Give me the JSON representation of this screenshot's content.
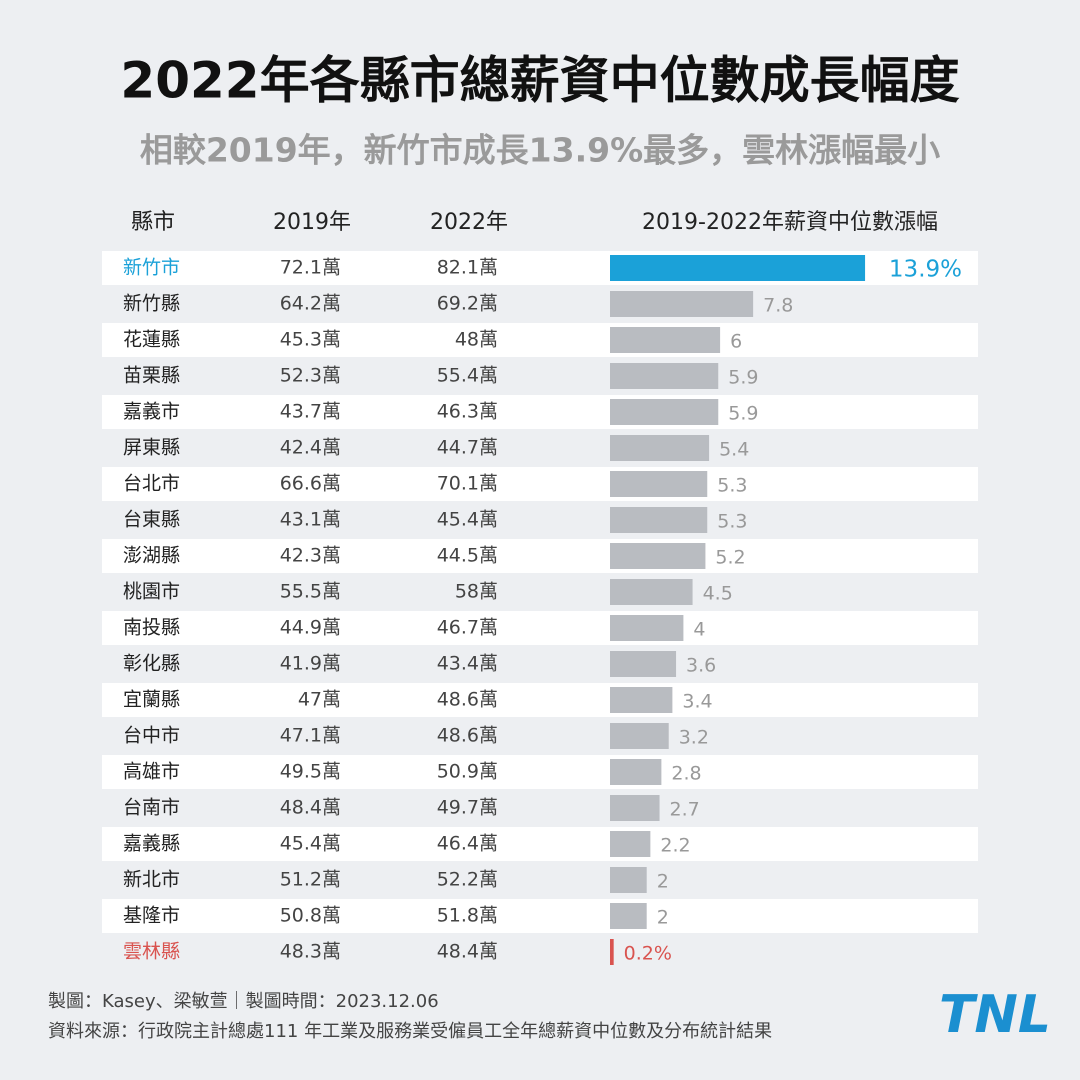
{
  "chart_data": {
    "type": "bar",
    "title": "2022年各縣市總薪資中位數成長幅度",
    "subtitle": "相較2019年，新竹市成長13.9%最多，雲林漲幅最小",
    "column_headers": [
      "縣市",
      "2019年",
      "2022年",
      "2019-2022年薪資中位數漲幅"
    ],
    "categories": [
      "新竹市",
      "新竹縣",
      "花蓮縣",
      "苗栗縣",
      "嘉義市",
      "屏東縣",
      "台北市",
      "台東縣",
      "澎湖縣",
      "桃園市",
      "南投縣",
      "彰化縣",
      "宜蘭縣",
      "台中市",
      "高雄市",
      "台南市",
      "嘉義縣",
      "新北市",
      "基隆市",
      "雲林縣"
    ],
    "wage_2019": [
      "72.1萬",
      "64.2萬",
      "45.3萬",
      "52.3萬",
      "43.7萬",
      "42.4萬",
      "66.6萬",
      "43.1萬",
      "42.3萬",
      "55.5萬",
      "44.9萬",
      "41.9萬",
      "47萬",
      "47.1萬",
      "49.5萬",
      "48.4萬",
      "45.4萬",
      "51.2萬",
      "50.8萬",
      "48.3萬"
    ],
    "wage_2022": [
      "82.1萬",
      "69.2萬",
      "48萬",
      "55.4萬",
      "46.3萬",
      "44.7萬",
      "70.1萬",
      "45.4萬",
      "44.5萬",
      "58萬",
      "46.7萬",
      "43.4萬",
      "48.6萬",
      "48.6萬",
      "50.9萬",
      "49.7萬",
      "46.4萬",
      "52.2萬",
      "51.8萬",
      "48.4萬"
    ],
    "values": [
      13.9,
      7.8,
      6,
      5.9,
      5.9,
      5.4,
      5.3,
      5.3,
      5.2,
      4.5,
      4,
      3.6,
      3.4,
      3.2,
      2.8,
      2.7,
      2.2,
      2,
      2,
      0.2
    ],
    "value_labels": [
      "13.9%",
      "7.8",
      "6",
      "5.9",
      "5.9",
      "5.4",
      "5.3",
      "5.3",
      "5.2",
      "4.5",
      "4",
      "3.6",
      "3.4",
      "3.2",
      "2.8",
      "2.7",
      "2.2",
      "2",
      "2",
      "0.2%"
    ],
    "colors": [
      "#1ba1d8",
      "#b9bcc1",
      "#b9bcc1",
      "#b9bcc1",
      "#b9bcc1",
      "#b9bcc1",
      "#b9bcc1",
      "#b9bcc1",
      "#b9bcc1",
      "#b9bcc1",
      "#b9bcc1",
      "#b9bcc1",
      "#b9bcc1",
      "#b9bcc1",
      "#b9bcc1",
      "#b9bcc1",
      "#b9bcc1",
      "#b9bcc1",
      "#b9bcc1",
      "#d9534f"
    ],
    "xlim": [
      0,
      20
    ],
    "credit": "製圖：Kasey、梁敏萱｜製圖時間：2023.12.06",
    "source": "資料來源：行政院主計總處111 年工業及服務業受僱員工全年總薪資中位數及分布統計結果",
    "logo": "TNL"
  }
}
